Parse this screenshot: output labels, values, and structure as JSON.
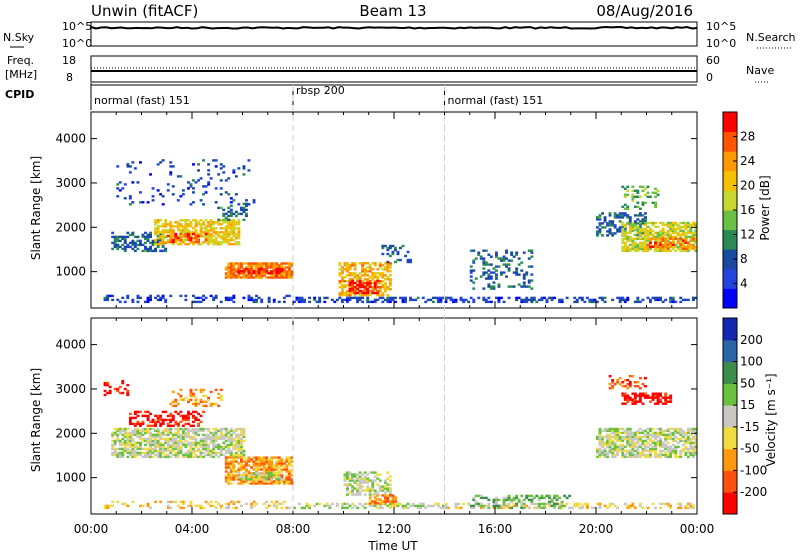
{
  "header": {
    "title": "Unwin (fitACF)",
    "beam": "Beam 13",
    "date": "08/Aug/2016"
  },
  "strips": {
    "nsky": {
      "label": "N.Sky",
      "ticks": [
        "10^5",
        "10^0"
      ],
      "right_label": "N.Search",
      "right_ticks": [
        "10^5",
        "10^0"
      ]
    },
    "freq": {
      "label": "Freq.",
      "unit": "[MHz]",
      "ticks": [
        "18",
        "8"
      ],
      "right_label": "Nave",
      "right_ticks": [
        "60",
        "0"
      ]
    },
    "cpid": {
      "label": "CPID",
      "segments": [
        {
          "label": "normal (fast) 151",
          "start": 0,
          "end": 8
        },
        {
          "label": "rbsp 200",
          "start": 8,
          "end": 14
        },
        {
          "label": "normal (fast) 151",
          "start": 14,
          "end": 24
        }
      ]
    }
  },
  "chart_data": [
    {
      "type": "heatmap",
      "name": "power",
      "ylabel": "Slant Range [km]",
      "ylim": [
        180,
        4600
      ],
      "yticks": [
        1000,
        2000,
        3000,
        4000
      ],
      "colorbar": {
        "label": "Power [dB]",
        "range": [
          0,
          32
        ],
        "ticks": [
          4,
          8,
          12,
          16,
          20,
          24,
          28
        ],
        "colors": [
          "#0000ff",
          "#2244dd",
          "#1a4aa0",
          "#2a8a55",
          "#6cbf45",
          "#c8d830",
          "#f5c000",
          "#ff9900",
          "#ff5500",
          "#ff0000"
        ]
      },
      "regions": [
        {
          "t": [
            0.5,
            7.8
          ],
          "r": [
            300,
            450
          ],
          "level": 6,
          "density": 0.35
        },
        {
          "t": [
            8.0,
            14.0
          ],
          "r": [
            300,
            430
          ],
          "level": 6,
          "density": 0.55
        },
        {
          "t": [
            14.0,
            24.0
          ],
          "r": [
            300,
            430
          ],
          "level": 6,
          "density": 0.45
        },
        {
          "t": [
            0.8,
            3.0
          ],
          "r": [
            1450,
            1900
          ],
          "level": 9,
          "density": 0.55
        },
        {
          "t": [
            2.5,
            5.8
          ],
          "r": [
            1600,
            2150
          ],
          "level": 20,
          "density": 0.7
        },
        {
          "t": [
            3.0,
            4.5
          ],
          "r": [
            1650,
            1850
          ],
          "level": 28,
          "density": 0.6
        },
        {
          "t": [
            5.0,
            6.1
          ],
          "r": [
            2150,
            2550
          ],
          "level": 10,
          "density": 0.35
        },
        {
          "t": [
            5.3,
            7.9
          ],
          "r": [
            850,
            1200
          ],
          "level": 25,
          "density": 0.85
        },
        {
          "t": [
            5.8,
            7.5
          ],
          "r": [
            950,
            1050
          ],
          "level": 31,
          "density": 0.7
        },
        {
          "t": [
            9.8,
            11.8
          ],
          "r": [
            450,
            1200
          ],
          "level": 22,
          "density": 0.6
        },
        {
          "t": [
            10.2,
            11.3
          ],
          "r": [
            500,
            800
          ],
          "level": 30,
          "density": 0.55
        },
        {
          "t": [
            11.5,
            12.6
          ],
          "r": [
            1200,
            1600
          ],
          "level": 8,
          "density": 0.25
        },
        {
          "t": [
            15.0,
            17.5
          ],
          "r": [
            600,
            1500
          ],
          "level": 8,
          "density": 0.25
        },
        {
          "t": [
            20.0,
            22.0
          ],
          "r": [
            1800,
            2300
          ],
          "level": 9,
          "density": 0.45
        },
        {
          "t": [
            21.0,
            24.0
          ],
          "r": [
            1450,
            2100
          ],
          "level": 18,
          "density": 0.7
        },
        {
          "t": [
            22.0,
            24.0
          ],
          "r": [
            1500,
            1750
          ],
          "level": 26,
          "density": 0.6
        },
        {
          "t": [
            21.0,
            22.5
          ],
          "r": [
            2400,
            2900
          ],
          "level": 14,
          "density": 0.3
        },
        {
          "t": [
            1.0,
            6.5
          ],
          "r": [
            2500,
            3500
          ],
          "level": 6,
          "density": 0.08
        }
      ]
    },
    {
      "type": "heatmap",
      "name": "velocity",
      "xlabel": "Time UT",
      "ylabel": "Slant Range [km]",
      "ylim": [
        180,
        4600
      ],
      "yticks": [
        1000,
        2000,
        3000,
        4000
      ],
      "xticks": [
        "00:00",
        "04:00",
        "08:00",
        "12:00",
        "16:00",
        "20:00",
        "00:00"
      ],
      "colorbar": {
        "label": "Velocity [m s⁻¹]",
        "ticks": [
          200,
          100,
          50,
          15,
          -15,
          -50,
          -100,
          -200
        ],
        "colors": [
          "#1428b4",
          "#2c64a8",
          "#3c8c4c",
          "#6cc040",
          "#c8c8c0",
          "#f0dc40",
          "#ff9a10",
          "#ff5010",
          "#ff0000"
        ]
      },
      "regions": [
        {
          "t": [
            0.5,
            7.8
          ],
          "r": [
            300,
            450
          ],
          "level": 5,
          "density": 0.3
        },
        {
          "t": [
            8.0,
            14.0
          ],
          "r": [
            300,
            430
          ],
          "level": 4,
          "density": 0.45
        },
        {
          "t": [
            14.0,
            24.0
          ],
          "r": [
            300,
            430
          ],
          "level": 5,
          "density": 0.4
        },
        {
          "t": [
            0.8,
            6.0
          ],
          "r": [
            1450,
            2100
          ],
          "level": 4,
          "density": 0.75
        },
        {
          "t": [
            1.5,
            4.5
          ],
          "r": [
            2150,
            2500
          ],
          "level": 8,
          "density": 0.45
        },
        {
          "t": [
            3.0,
            5.2
          ],
          "r": [
            2600,
            3000
          ],
          "level": 6,
          "density": 0.3
        },
        {
          "t": [
            5.3,
            7.9
          ],
          "r": [
            850,
            1450
          ],
          "level": 6,
          "density": 0.75
        },
        {
          "t": [
            5.8,
            7.5
          ],
          "r": [
            950,
            1100
          ],
          "level": 4,
          "density": 0.6
        },
        {
          "t": [
            10.0,
            11.8
          ],
          "r": [
            600,
            1100
          ],
          "level": 4,
          "density": 0.55
        },
        {
          "t": [
            11.0,
            12.0
          ],
          "r": [
            400,
            600
          ],
          "level": 6,
          "density": 0.55
        },
        {
          "t": [
            15.0,
            19.0
          ],
          "r": [
            300,
            600
          ],
          "level": 3,
          "density": 0.45
        },
        {
          "t": [
            20.0,
            24.0
          ],
          "r": [
            1450,
            2100
          ],
          "level": 4,
          "density": 0.7
        },
        {
          "t": [
            21.0,
            23.0
          ],
          "r": [
            2650,
            2900
          ],
          "level": 8,
          "density": 0.6
        },
        {
          "t": [
            20.5,
            22.0
          ],
          "r": [
            3000,
            3300
          ],
          "level": 7,
          "density": 0.25
        },
        {
          "t": [
            0.5,
            1.5
          ],
          "r": [
            2800,
            3200
          ],
          "level": 8,
          "density": 0.3
        }
      ]
    }
  ]
}
